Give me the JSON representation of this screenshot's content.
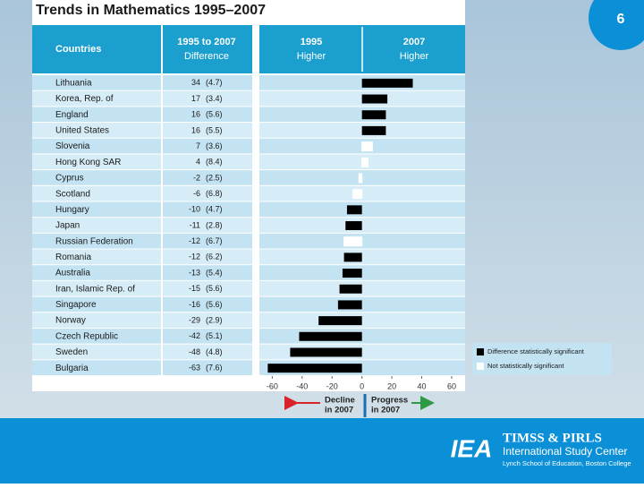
{
  "slide_number": "6",
  "chart_data": {
    "type": "bar",
    "orientation": "horizontal",
    "title": "Trends in Mathematics 1995–2007",
    "headers": {
      "countries": "Countries",
      "difference_top": "1995 to 2007",
      "difference_bottom": "Difference",
      "left_top": "1995",
      "left_bottom": "Higher",
      "right_top": "2007",
      "right_bottom": "Higher"
    },
    "categories": [
      "Lithuania",
      "Korea, Rep. of",
      "England",
      "United States",
      "Slovenia",
      "Hong Kong SAR",
      "Cyprus",
      "Scotland",
      "Hungary",
      "Japan",
      "Russian Federation",
      "Romania",
      "Australia",
      "Iran, Islamic Rep. of",
      "Singapore",
      "Norway",
      "Czech Republic",
      "Sweden",
      "Bulgaria"
    ],
    "values": [
      34,
      17,
      16,
      16,
      7,
      4,
      -2,
      -6,
      -10,
      -11,
      -12,
      -12,
      -13,
      -15,
      -16,
      -29,
      -42,
      -48,
      -63
    ],
    "se_labels": [
      "(4.7)",
      "(3.4)",
      "(5.6)",
      "(5.5)",
      "(3.6)",
      "(8.4)",
      "(2.5)",
      "(6.8)",
      "(4.7)",
      "(2.8)",
      "(6.7)",
      "(6.2)",
      "(5.4)",
      "(5.6)",
      "(5.6)",
      "(2.9)",
      "(5.1)",
      "(4.8)",
      "(7.6)"
    ],
    "significance": [
      0,
      0,
      0,
      0,
      1,
      1,
      1,
      1,
      0,
      0,
      1,
      0,
      0,
      0,
      0,
      0,
      0,
      0,
      0
    ],
    "legend": [
      {
        "name": "Difference statistically significant",
        "color": "#000000"
      },
      {
        "name": "Not statistically significant",
        "color": "#ffffff"
      }
    ],
    "xlim": [
      -65,
      69
    ],
    "xticks": [
      -60,
      -40,
      -20,
      0,
      20,
      40,
      60
    ],
    "annotations": {
      "decline_top": "Decline",
      "decline_bottom": "in 2007",
      "progress_top": "Progress",
      "progress_bottom": "in 2007"
    }
  },
  "footer": {
    "logo": "IEA",
    "title": "TIMSS & PIRLS",
    "subtitle": "International Study Center",
    "affiliation": "Lynch School of Education, Boston College"
  }
}
